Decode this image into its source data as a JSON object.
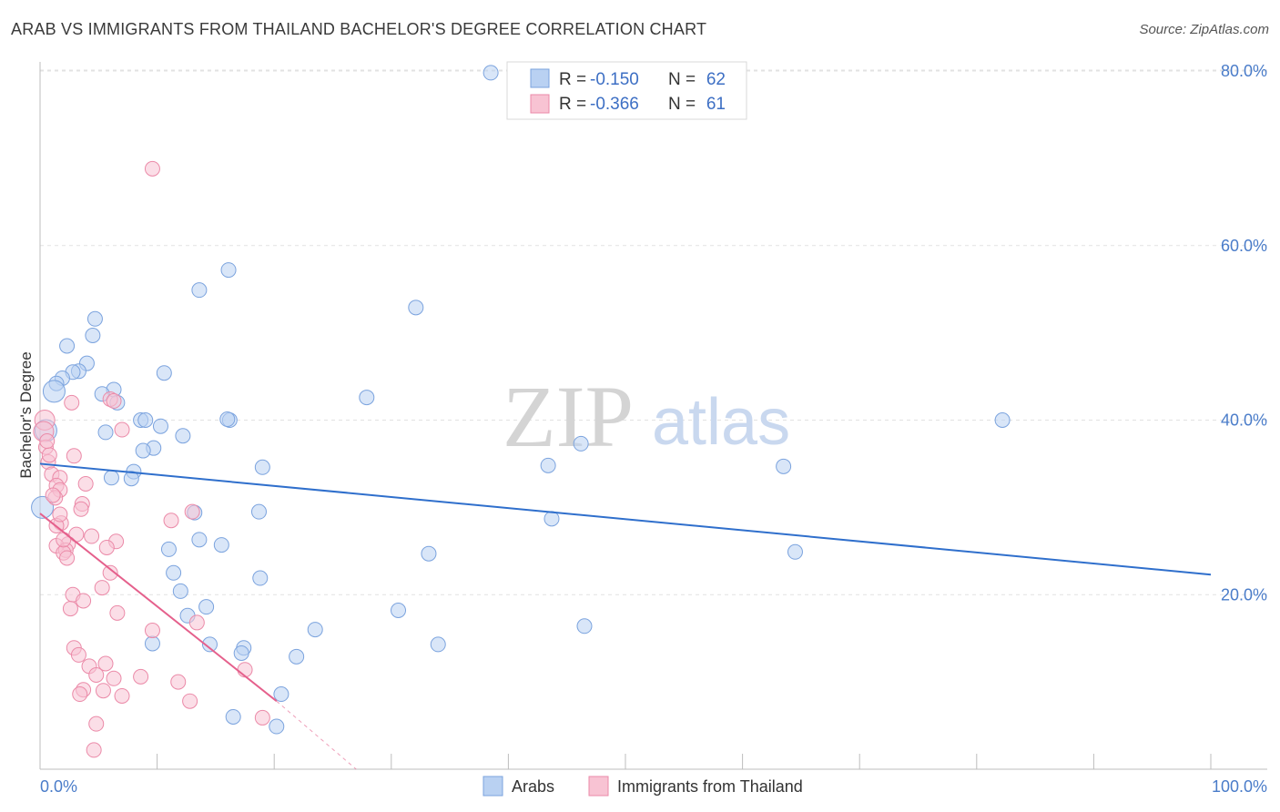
{
  "title": "ARAB VS IMMIGRANTS FROM THAILAND BACHELOR'S DEGREE CORRELATION CHART",
  "source": "Source: ZipAtlas.com",
  "watermark": {
    "zip": "ZIP",
    "atlas": "atlas"
  },
  "colors": {
    "arabs_fill": "#b9d1f2",
    "arabs_stroke": "#7ba3de",
    "arabs_line": "#2f6fcc",
    "thai_fill": "#f8c3d3",
    "thai_stroke": "#eb8aa8",
    "thai_line": "#e5608c",
    "grid": "#e2e2e2",
    "tick_text": "#4a7cc9"
  },
  "stats": {
    "r_label": "R =",
    "n_label": "N =",
    "rows": [
      {
        "series": "arabs",
        "r": "-0.150",
        "n": "62"
      },
      {
        "series": "thai",
        "r": "-0.366",
        "n": "61"
      }
    ]
  },
  "legend": {
    "items": [
      {
        "series": "arabs",
        "label": "Arabs"
      },
      {
        "series": "thai",
        "label": "Immigrants from Thailand"
      }
    ]
  },
  "chart_data": {
    "type": "scatter",
    "title": "ARAB VS IMMIGRANTS FROM THAILAND BACHELOR'S DEGREE CORRELATION CHART",
    "xlabel": "",
    "ylabel": "Bachelor's Degree",
    "xlim": [
      0,
      100
    ],
    "ylim": [
      0,
      80
    ],
    "x_tick_labels": [
      "0.0%",
      "100.0%"
    ],
    "y_ticks": [
      20,
      40,
      60,
      80
    ],
    "y_tick_labels": [
      "20.0%",
      "40.0%",
      "60.0%",
      "80.0%"
    ],
    "grid": "horizontal dashed",
    "legend_position": "bottom",
    "series": [
      {
        "name": "Arabs",
        "trendline": {
          "x": [
            0,
            100
          ],
          "y": [
            35.0,
            22.3
          ]
        },
        "points": [
          [
            38.5,
            79.8
          ],
          [
            16.1,
            57.2
          ],
          [
            13.6,
            54.9
          ],
          [
            32.1,
            52.9
          ],
          [
            4.7,
            51.6
          ],
          [
            4.5,
            49.7
          ],
          [
            2.3,
            48.5
          ],
          [
            4.0,
            46.5
          ],
          [
            3.3,
            45.6
          ],
          [
            2.8,
            45.5
          ],
          [
            10.6,
            45.4
          ],
          [
            1.9,
            44.8
          ],
          [
            1.4,
            44.2
          ],
          [
            1.2,
            43.3
          ],
          [
            6.3,
            43.5
          ],
          [
            5.3,
            43.0
          ],
          [
            27.9,
            42.6
          ],
          [
            6.6,
            42.0
          ],
          [
            8.6,
            40.0
          ],
          [
            16.2,
            40.0
          ],
          [
            82.2,
            40.0
          ],
          [
            10.3,
            39.3
          ],
          [
            0.5,
            38.8
          ],
          [
            5.6,
            38.6
          ],
          [
            12.2,
            38.2
          ],
          [
            46.2,
            37.3
          ],
          [
            9.7,
            36.8
          ],
          [
            8.8,
            36.5
          ],
          [
            0.2,
            30.0
          ],
          [
            43.4,
            34.8
          ],
          [
            63.5,
            34.7
          ],
          [
            19.0,
            34.6
          ],
          [
            8.0,
            34.1
          ],
          [
            6.1,
            33.4
          ],
          [
            7.8,
            33.3
          ],
          [
            13.2,
            29.4
          ],
          [
            18.7,
            29.5
          ],
          [
            43.7,
            28.7
          ],
          [
            13.6,
            26.3
          ],
          [
            15.5,
            25.7
          ],
          [
            11.0,
            25.2
          ],
          [
            33.2,
            24.7
          ],
          [
            64.5,
            24.9
          ],
          [
            11.4,
            22.5
          ],
          [
            18.8,
            21.9
          ],
          [
            12.0,
            20.4
          ],
          [
            14.2,
            18.6
          ],
          [
            30.6,
            18.2
          ],
          [
            12.6,
            17.6
          ],
          [
            46.5,
            16.4
          ],
          [
            23.5,
            16.0
          ],
          [
            9.6,
            14.4
          ],
          [
            14.5,
            14.3
          ],
          [
            34.0,
            14.3
          ],
          [
            17.4,
            13.9
          ],
          [
            17.2,
            13.3
          ],
          [
            21.9,
            12.9
          ],
          [
            20.6,
            8.6
          ],
          [
            16.5,
            6.0
          ],
          [
            20.2,
            4.9
          ],
          [
            16.0,
            40.1
          ],
          [
            9.0,
            40.0
          ]
        ]
      },
      {
        "name": "Immigrants from Thailand",
        "trendline": {
          "x": [
            0,
            20.2
          ],
          "y": [
            29.3,
            7.8
          ],
          "dashed_to": [
            27,
            0
          ]
        },
        "points": [
          [
            9.6,
            68.8
          ],
          [
            0.4,
            40.0
          ],
          [
            0.3,
            38.7
          ],
          [
            0.5,
            36.9
          ],
          [
            2.9,
            35.9
          ],
          [
            0.7,
            35.2
          ],
          [
            1.0,
            33.8
          ],
          [
            1.7,
            33.4
          ],
          [
            1.4,
            32.5
          ],
          [
            3.9,
            32.7
          ],
          [
            1.7,
            32.0
          ],
          [
            1.3,
            31.1
          ],
          [
            3.6,
            30.4
          ],
          [
            3.5,
            29.8
          ],
          [
            6.0,
            42.4
          ],
          [
            2.7,
            42.0
          ],
          [
            6.3,
            42.2
          ],
          [
            7.0,
            38.9
          ],
          [
            13.0,
            29.5
          ],
          [
            11.2,
            28.5
          ],
          [
            1.8,
            28.2
          ],
          [
            1.4,
            27.9
          ],
          [
            3.1,
            26.9
          ],
          [
            2.4,
            25.8
          ],
          [
            1.4,
            25.6
          ],
          [
            6.5,
            26.1
          ],
          [
            5.7,
            25.4
          ],
          [
            2.2,
            25.1
          ],
          [
            2.0,
            24.8
          ],
          [
            2.3,
            24.2
          ],
          [
            6.0,
            22.5
          ],
          [
            5.3,
            20.8
          ],
          [
            2.8,
            20.0
          ],
          [
            3.7,
            19.3
          ],
          [
            2.6,
            18.4
          ],
          [
            6.6,
            17.9
          ],
          [
            13.4,
            16.8
          ],
          [
            9.6,
            15.9
          ],
          [
            2.9,
            13.9
          ],
          [
            3.3,
            13.1
          ],
          [
            5.6,
            12.1
          ],
          [
            4.2,
            11.8
          ],
          [
            17.5,
            11.4
          ],
          [
            4.8,
            10.8
          ],
          [
            6.3,
            10.4
          ],
          [
            8.6,
            10.6
          ],
          [
            11.8,
            10.0
          ],
          [
            3.7,
            9.1
          ],
          [
            5.4,
            9.0
          ],
          [
            7.0,
            8.4
          ],
          [
            12.8,
            7.8
          ],
          [
            3.4,
            8.6
          ],
          [
            19.0,
            5.9
          ],
          [
            4.8,
            5.2
          ],
          [
            4.6,
            2.2
          ],
          [
            1.7,
            29.2
          ],
          [
            4.4,
            26.7
          ],
          [
            2.0,
            26.3
          ],
          [
            1.1,
            31.4
          ],
          [
            0.8,
            36.0
          ],
          [
            0.6,
            37.6
          ]
        ]
      }
    ]
  }
}
